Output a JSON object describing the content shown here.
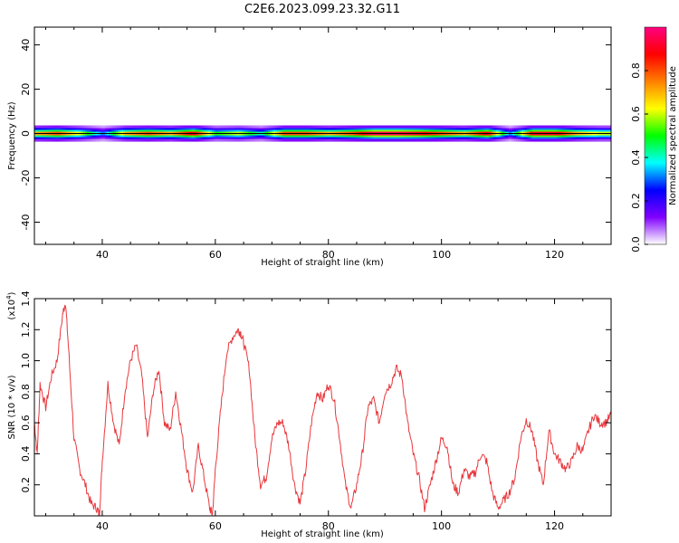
{
  "title": "C2E6.2023.099.23.32.G11",
  "chart_data": [
    {
      "type": "heatmap",
      "xlabel": "Height of straight line (km)",
      "ylabel": "Frequency (Hz)",
      "xlim": [
        28,
        130
      ],
      "ylim": [
        -50,
        48
      ],
      "xticks": [
        40,
        60,
        80,
        100,
        120
      ],
      "yticks": [
        40,
        20,
        0,
        -20,
        -40
      ],
      "ytick_labels": [
        "40",
        "20",
        "0",
        "-20",
        "-40"
      ],
      "colorbar": {
        "label": "Normalized spectral amplitude",
        "range": [
          0,
          1
        ],
        "ticks": [
          0.0,
          0.2,
          0.4,
          0.6,
          0.8
        ],
        "tick_labels": [
          "0.0",
          "0.2",
          "0.4",
          "0.6",
          "0.8"
        ],
        "colors": [
          "#ffffff",
          "#8000ff",
          "#0000ff",
          "#00ffff",
          "#00ff00",
          "#ffff00",
          "#ff8000",
          "#ff0000",
          "#ff0080"
        ]
      },
      "band_center_hz": 0,
      "band_amplitude_by_height": {
        "x": [
          28,
          32,
          36,
          40,
          44,
          48,
          52,
          56,
          60,
          64,
          68,
          72,
          76,
          80,
          84,
          88,
          92,
          96,
          100,
          104,
          108,
          112,
          116,
          120,
          124,
          128,
          130
        ],
        "y": [
          0.7,
          0.8,
          0.6,
          0.3,
          0.7,
          0.8,
          0.7,
          0.9,
          0.5,
          0.6,
          0.4,
          0.8,
          0.8,
          0.7,
          0.8,
          0.95,
          0.95,
          0.9,
          0.8,
          0.7,
          0.9,
          0.3,
          0.9,
          0.9,
          0.7,
          0.6,
          0.6
        ]
      }
    },
    {
      "type": "line",
      "xlabel": "Height of straight line (km)",
      "ylabel": "SNR (10 * v/v)",
      "y_multiplier": "(x10",
      "y_multiplier_exp": "4",
      "y_multiplier_close": ")",
      "xlim": [
        28,
        130
      ],
      "ylim": [
        0,
        1.4
      ],
      "xticks": [
        40,
        60,
        80,
        100,
        120
      ],
      "yticks": [
        0.2,
        0.4,
        0.6,
        0.8,
        1.0,
        1.2,
        1.4
      ],
      "ytick_labels": [
        "0.2",
        "0.4",
        "0.6",
        "0.8",
        "1.0",
        "1.2",
        "1.4"
      ],
      "color": "#e8383d",
      "series": [
        {
          "x": [
            28,
            28.5,
            29,
            30,
            31,
            32,
            33,
            33.5,
            34,
            35,
            36,
            37,
            38,
            39,
            39.5,
            40,
            41,
            42,
            43,
            44,
            45,
            46,
            47,
            48,
            49,
            50,
            51,
            52,
            53,
            54,
            55,
            56,
            57,
            58,
            59,
            59.5,
            60,
            61,
            62,
            63,
            64,
            64.5,
            65,
            66,
            67,
            68,
            69,
            70,
            71,
            72,
            73,
            74,
            75,
            76,
            77,
            78,
            79,
            80,
            81,
            82,
            83,
            84,
            85,
            86,
            87,
            88,
            89,
            90,
            91,
            92,
            93,
            94,
            95,
            96,
            97,
            98,
            99,
            100,
            101,
            102,
            103,
            104,
            105,
            106,
            107,
            108,
            109,
            110,
            111,
            112,
            113,
            114,
            115,
            116,
            117,
            118,
            119,
            120,
            121,
            122,
            123,
            124,
            125,
            126,
            127,
            128,
            129,
            130
          ],
          "y": [
            0.6,
            0.4,
            0.85,
            0.7,
            0.9,
            1.0,
            1.3,
            1.38,
            1.1,
            0.5,
            0.3,
            0.2,
            0.08,
            0.05,
            0.01,
            0.35,
            0.85,
            0.6,
            0.45,
            0.8,
            1.0,
            1.1,
            0.9,
            0.5,
            0.8,
            0.95,
            0.6,
            0.55,
            0.8,
            0.55,
            0.3,
            0.15,
            0.45,
            0.25,
            0.05,
            0.01,
            0.3,
            0.7,
            1.05,
            1.15,
            1.2,
            1.18,
            1.12,
            0.95,
            0.5,
            0.2,
            0.25,
            0.5,
            0.6,
            0.6,
            0.45,
            0.2,
            0.08,
            0.3,
            0.6,
            0.8,
            0.75,
            0.85,
            0.75,
            0.5,
            0.2,
            0.05,
            0.2,
            0.4,
            0.7,
            0.75,
            0.6,
            0.8,
            0.85,
            0.95,
            0.9,
            0.6,
            0.4,
            0.25,
            0.05,
            0.2,
            0.35,
            0.5,
            0.45,
            0.2,
            0.15,
            0.3,
            0.25,
            0.28,
            0.4,
            0.35,
            0.15,
            0.05,
            0.1,
            0.15,
            0.25,
            0.5,
            0.62,
            0.55,
            0.35,
            0.2,
            0.55,
            0.4,
            0.35,
            0.3,
            0.35,
            0.45,
            0.42,
            0.55,
            0.65,
            0.6,
            0.6,
            0.65
          ]
        }
      ]
    }
  ]
}
